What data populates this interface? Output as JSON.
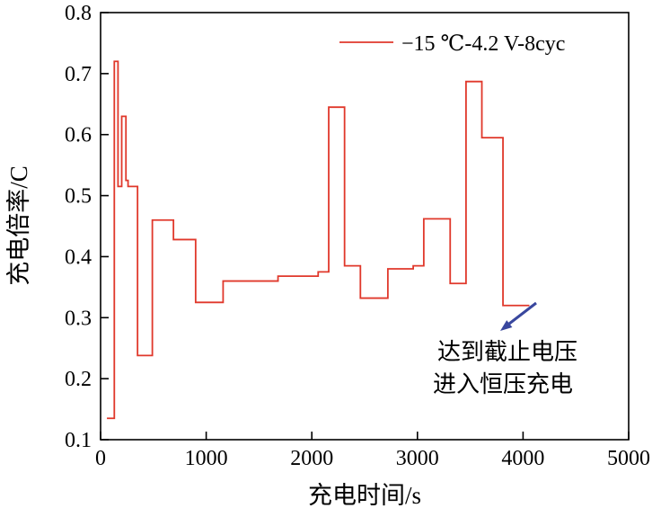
{
  "chart_data": {
    "type": "line",
    "style": "step",
    "title": "",
    "xlabel": "充电时间/s",
    "ylabel": "充电倍率/C",
    "legend": "−15 ℃-4.2 V-8cyc",
    "xlim": [
      0,
      5000
    ],
    "ylim": [
      0.1,
      0.8
    ],
    "x_ticks": [
      0,
      1000,
      2000,
      3000,
      4000,
      5000
    ],
    "y_ticks": [
      0.1,
      0.2,
      0.3,
      0.4,
      0.5,
      0.6,
      0.7,
      0.8
    ],
    "grid": false,
    "legend_position": "top-right-inside",
    "line_color": "#e0382b",
    "series": [
      {
        "name": "−15 ℃-4.2 V-8cyc",
        "step_x_start": [
          60,
          130,
          165,
          200,
          240,
          260,
          350,
          490,
          690,
          900,
          1160,
          1680,
          2060,
          2160,
          2310,
          2460,
          2720,
          2960,
          3060,
          3310,
          3460,
          3610,
          3810
        ],
        "step_values": [
          0.135,
          0.72,
          0.515,
          0.63,
          0.525,
          0.515,
          0.238,
          0.46,
          0.428,
          0.325,
          0.36,
          0.368,
          0.375,
          0.645,
          0.385,
          0.332,
          0.38,
          0.385,
          0.462,
          0.356,
          0.687,
          0.595,
          0.32
        ],
        "x_end": 4060
      }
    ],
    "annotation": {
      "line1": "达到截止电压",
      "line2": "进入恒压充电",
      "arrow_color": "#39479e",
      "arrow_points_to": "step at ~3900 s, 0.32 C"
    }
  }
}
